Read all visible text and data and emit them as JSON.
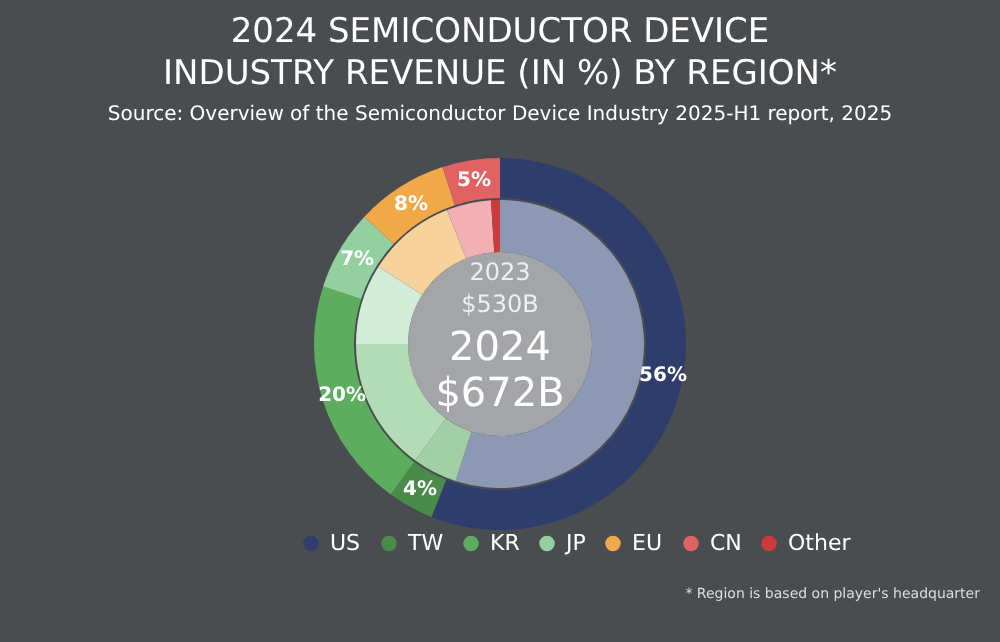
{
  "chart_data": {
    "type": "donut",
    "title": "2024 SEMICONDUCTOR DEVICE INDUSTRY REVENUE (IN %) BY REGION*",
    "subtitle": "Source: Overview of the Semiconductor Device Industry 2025-H1 report, 2025",
    "categories": [
      "US",
      "TW",
      "KR",
      "JP",
      "EU",
      "CN",
      "Other"
    ],
    "series": [
      {
        "values": [
          56,
          4,
          20,
          7,
          8,
          5,
          0
        ],
        "colors": [
          "#2e3d6b",
          "#4a8a4a",
          "#5cae5e",
          "#93cf9f",
          "#f0a848",
          "#e06262",
          "#cc3b3b"
        ],
        "value_labels": [
          "56%",
          "4%",
          "20%",
          "7%",
          "8%",
          "5%",
          null
        ]
      },
      {
        "values": [
          55,
          5,
          15,
          9,
          10,
          5,
          1
        ],
        "colors": [
          "#8c98b4",
          "#a3cfa6",
          "#b3dbb5",
          "#d3ecd7",
          "#f7d29a",
          "#f2b0b4",
          "#cc3b3b"
        ]
      }
    ],
    "annotations": [
      "2023",
      "$530B",
      "2024",
      "$672B",
      "* Region is based on player's headquarter"
    ],
    "legend": "bottom"
  }
}
